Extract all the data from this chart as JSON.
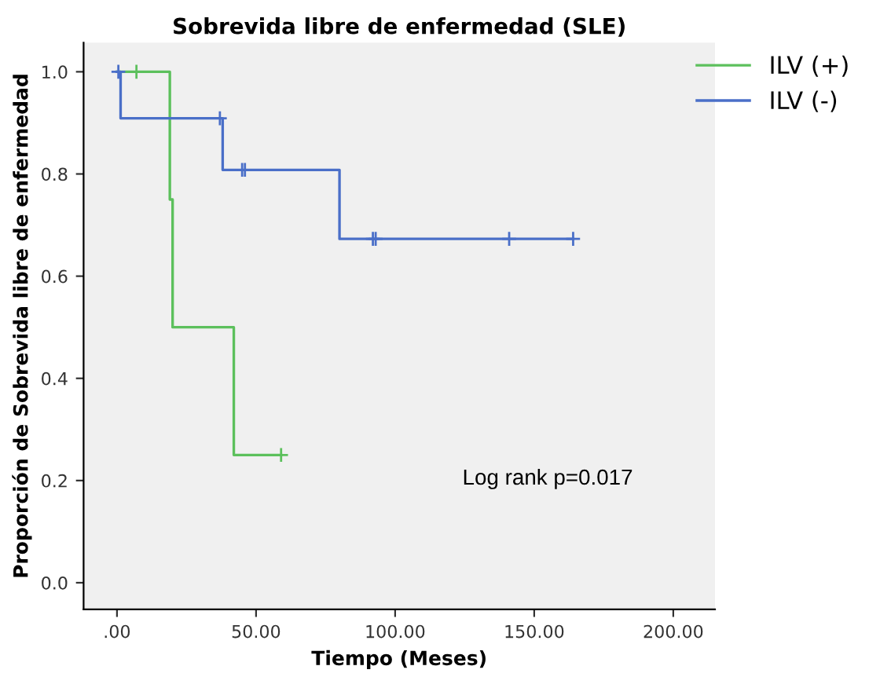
{
  "chart_data": {
    "type": "step",
    "title": "Sobrevida libre de enfermedad (SLE)",
    "xlabel": "Tiempo (Meses)",
    "ylabel": "Proporción de Sobrevida libre de enfermedad",
    "series": [
      {
        "name": "ILV (+)",
        "color": "#5cc05c",
        "x": [
          0,
          19,
          20,
          42,
          59
        ],
        "values": [
          1.0,
          0.75,
          0.5,
          0.25,
          0.25
        ]
      },
      {
        "name": "ILV (-)",
        "color": "#4a6fc8",
        "x": [
          0,
          1.3,
          38,
          80,
          164
        ],
        "values": [
          1.0,
          0.909,
          0.808,
          0.673,
          0.673
        ]
      },
      {
        "type": "scatter",
        "marker": "cross",
        "color": "#5cc05c",
        "x": [
          7,
          59
        ],
        "values": [
          1.0,
          0.25
        ]
      },
      {
        "type": "scatter",
        "marker": "cross",
        "color": "#4a6fc8",
        "x": [
          0.5,
          37,
          45,
          46,
          92,
          93,
          141,
          164
        ],
        "values": [
          1.0,
          0.909,
          0.808,
          0.808,
          0.673,
          0.673,
          0.673,
          0.673
        ]
      }
    ],
    "xlim": [
      -12,
      215
    ],
    "xticks": [
      {
        "value": 0,
        "label": ".00"
      },
      {
        "value": 50,
        "label": "50.00"
      },
      {
        "value": 100,
        "label": "100.00"
      },
      {
        "value": 150,
        "label": "150.00"
      },
      {
        "value": 200,
        "label": "200.00"
      }
    ],
    "ylim": [
      -0.052,
      1.057
    ],
    "yticks": [
      {
        "value": 0,
        "label": "0.0"
      },
      {
        "value": 0.2,
        "label": "0.2"
      },
      {
        "value": 0.4,
        "label": "0.4"
      },
      {
        "value": 0.6,
        "label": "0.6"
      },
      {
        "value": 0.8,
        "label": "0.8"
      },
      {
        "value": 1.0,
        "label": "1.0"
      }
    ],
    "annotations": [
      "Log rank p=0.017"
    ],
    "legend": "top right",
    "grid": false
  }
}
